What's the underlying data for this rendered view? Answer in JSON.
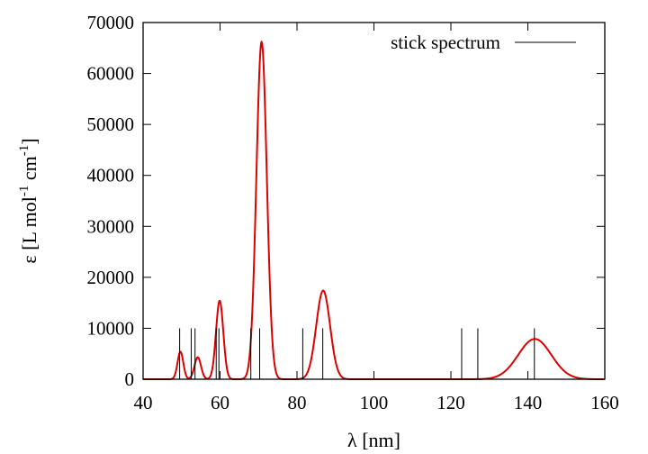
{
  "chart_data": {
    "type": "line",
    "xlabel": "λ [nm]",
    "ylabel": {
      "text": "ε [L mol",
      "sup1": "-1",
      "mid": " cm",
      "sup2": "-1",
      "end": "]"
    },
    "xlim": [
      40,
      160
    ],
    "ylim": [
      0,
      70000
    ],
    "xticks": [
      40,
      60,
      80,
      100,
      120,
      140,
      160
    ],
    "yticks": [
      0,
      10000,
      20000,
      30000,
      40000,
      50000,
      60000,
      70000
    ],
    "grid": false,
    "legend_position": "top-right",
    "series": [
      {
        "name": "stick spectrum",
        "kind": "sticks",
        "color": "#000000",
        "x": [
          49.5,
          52.5,
          53.5,
          59.0,
          59.7,
          68.0,
          70.3,
          81.5,
          86.7,
          122.8,
          127.0,
          141.7
        ],
        "y": [
          10000,
          10000,
          10000,
          10000,
          10000,
          10000,
          10000,
          10000,
          10000,
          10000,
          10000,
          10000
        ]
      },
      {
        "kind": "curve",
        "color": "#dd0000",
        "peaks": [
          {
            "center": 49.7,
            "height": 5400,
            "width": 0.75
          },
          {
            "center": 54.2,
            "height": 4300,
            "width": 0.85
          },
          {
            "center": 59.9,
            "height": 15400,
            "width": 0.95
          },
          {
            "center": 70.8,
            "height": 66200,
            "width": 1.35
          },
          {
            "center": 86.8,
            "height": 17400,
            "width": 1.8
          },
          {
            "center": 141.8,
            "height": 7900,
            "width": 4.3
          }
        ]
      }
    ]
  }
}
